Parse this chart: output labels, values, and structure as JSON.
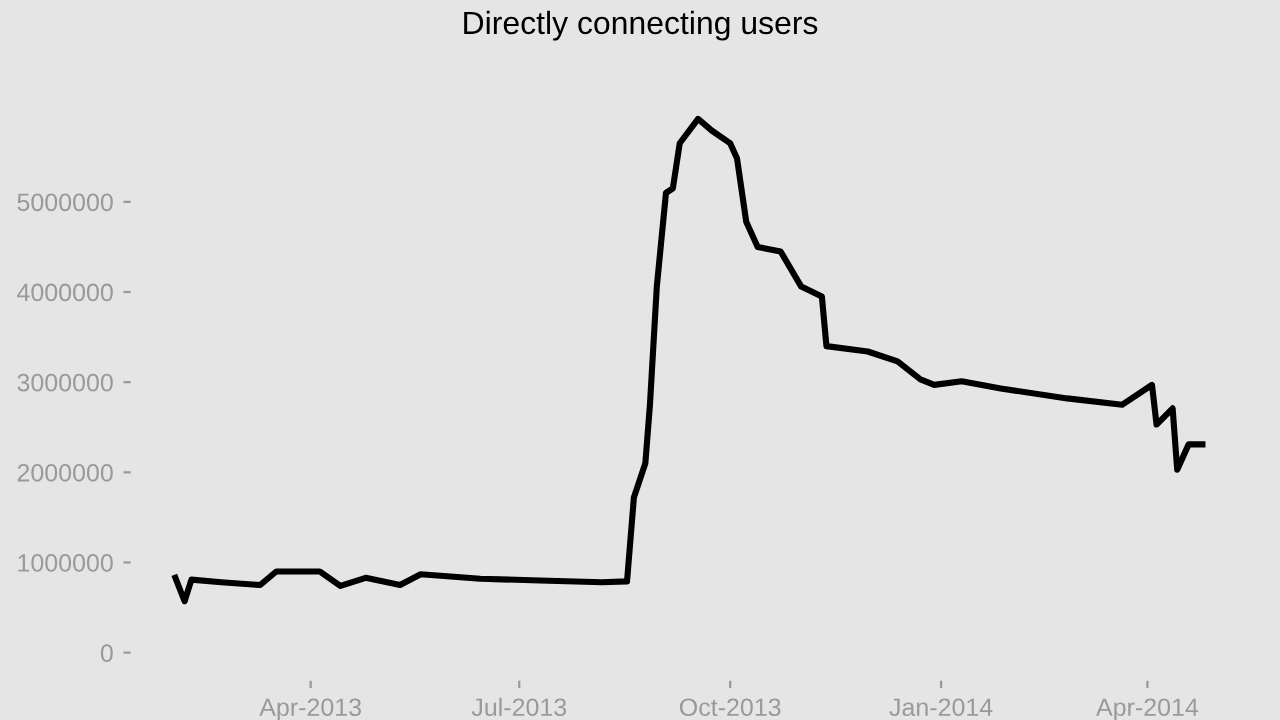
{
  "chart_data": {
    "type": "line",
    "title": "Directly connecting users",
    "x": [
      "2013-02-01",
      "2013-02-05",
      "2013-02-08",
      "2013-02-21",
      "2013-03-10",
      "2013-03-17",
      "2013-04-05",
      "2013-04-14",
      "2013-04-25",
      "2013-05-10",
      "2013-05-19",
      "2013-06-14",
      "2013-07-10",
      "2013-08-06",
      "2013-08-17",
      "2013-08-20",
      "2013-08-25",
      "2013-08-27",
      "2013-08-30",
      "2013-09-03",
      "2013-09-06",
      "2013-09-09",
      "2013-09-17",
      "2013-09-23",
      "2013-10-01",
      "2013-10-04",
      "2013-10-08",
      "2013-10-13",
      "2013-10-23",
      "2013-11-01",
      "2013-11-10",
      "2013-11-12",
      "2013-11-30",
      "2013-12-13",
      "2013-12-23",
      "2013-12-29",
      "2014-01-10",
      "2014-01-27",
      "2014-02-25",
      "2014-03-21",
      "2014-04-03",
      "2014-04-05",
      "2014-04-12",
      "2014-04-14",
      "2014-04-19",
      "2014-04-25"
    ],
    "series": [
      {
        "color": "#000000",
        "values": [
          830000,
          570000,
          810000,
          780000,
          750000,
          900000,
          900000,
          740000,
          830000,
          750000,
          870000,
          820000,
          800000,
          780000,
          790000,
          1720000,
          2100000,
          2750000,
          4060000,
          5100000,
          5150000,
          5650000,
          5920000,
          5790000,
          5650000,
          5480000,
          4780000,
          4500000,
          4450000,
          4060000,
          3950000,
          3400000,
          3340000,
          3230000,
          3030000,
          2970000,
          3010000,
          2930000,
          2820000,
          2750000,
          2970000,
          2530000,
          2710000,
          2030000,
          2310000,
          2310000
        ]
      }
    ],
    "xlim": [
      "2013-01-13",
      "2014-05-16"
    ],
    "xticks": [
      {
        "value": "2013-04-01",
        "label": "Apr-2013"
      },
      {
        "value": "2013-07-01",
        "label": "Jul-2013"
      },
      {
        "value": "2013-10-01",
        "label": "Oct-2013"
      },
      {
        "value": "2014-01-01",
        "label": "Jan-2014"
      },
      {
        "value": "2014-04-01",
        "label": "Apr-2014"
      }
    ],
    "ylim": [
      -300000,
      6680000
    ],
    "yticks": [
      0,
      1000000,
      2000000,
      3000000,
      4000000,
      5000000
    ],
    "grid": false,
    "legend": false,
    "line_style": "solid",
    "marker": "none"
  }
}
